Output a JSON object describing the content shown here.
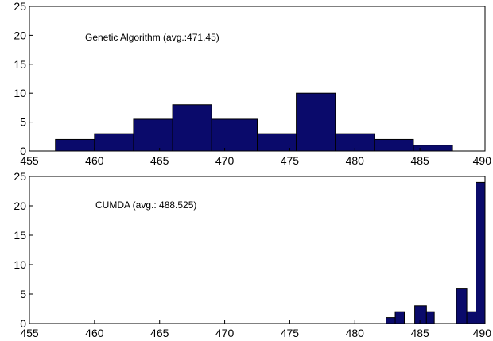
{
  "chart_data": [
    {
      "type": "bar",
      "annotation": "Genetic Algorithm  (avg.:471.45)",
      "xlim": [
        455,
        490
      ],
      "ylim": [
        0,
        25
      ],
      "xticks": [
        455,
        460,
        465,
        470,
        475,
        480,
        485,
        490
      ],
      "yticks": [
        0,
        5,
        10,
        15,
        20,
        25
      ],
      "grid": false,
      "bins": [
        {
          "x0": 457,
          "x1": 460,
          "value": 2
        },
        {
          "x0": 460,
          "x1": 463,
          "value": 3
        },
        {
          "x0": 463,
          "x1": 466,
          "value": 5.5
        },
        {
          "x0": 466,
          "x1": 469,
          "value": 8
        },
        {
          "x0": 469,
          "x1": 472.5,
          "value": 5.5
        },
        {
          "x0": 472.5,
          "x1": 475.5,
          "value": 3
        },
        {
          "x0": 475.5,
          "x1": 478.5,
          "value": 10
        },
        {
          "x0": 478.5,
          "x1": 481.5,
          "value": 3
        },
        {
          "x0": 481.5,
          "x1": 484.5,
          "value": 2
        },
        {
          "x0": 484.5,
          "x1": 487.5,
          "value": 1
        }
      ]
    },
    {
      "type": "bar",
      "annotation": "CUMDA   (avg.: 488.525)",
      "xlim": [
        455,
        490
      ],
      "ylim": [
        0,
        25
      ],
      "xticks": [
        455,
        460,
        465,
        470,
        475,
        480,
        485,
        490
      ],
      "yticks": [
        0,
        5,
        10,
        15,
        20,
        25
      ],
      "grid": false,
      "bins": [
        {
          "x0": 482.4,
          "x1": 483.1,
          "value": 1
        },
        {
          "x0": 483.1,
          "x1": 483.8,
          "value": 2
        },
        {
          "x0": 484.6,
          "x1": 485.5,
          "value": 3
        },
        {
          "x0": 485.5,
          "x1": 486.1,
          "value": 2
        },
        {
          "x0": 487.8,
          "x1": 488.6,
          "value": 6
        },
        {
          "x0": 488.6,
          "x1": 489.3,
          "value": 2
        },
        {
          "x0": 489.3,
          "x1": 490,
          "value": 24
        }
      ]
    }
  ],
  "colors": {
    "bar": "#0a0a6b",
    "axis": "#000000",
    "background": "#ffffff"
  }
}
